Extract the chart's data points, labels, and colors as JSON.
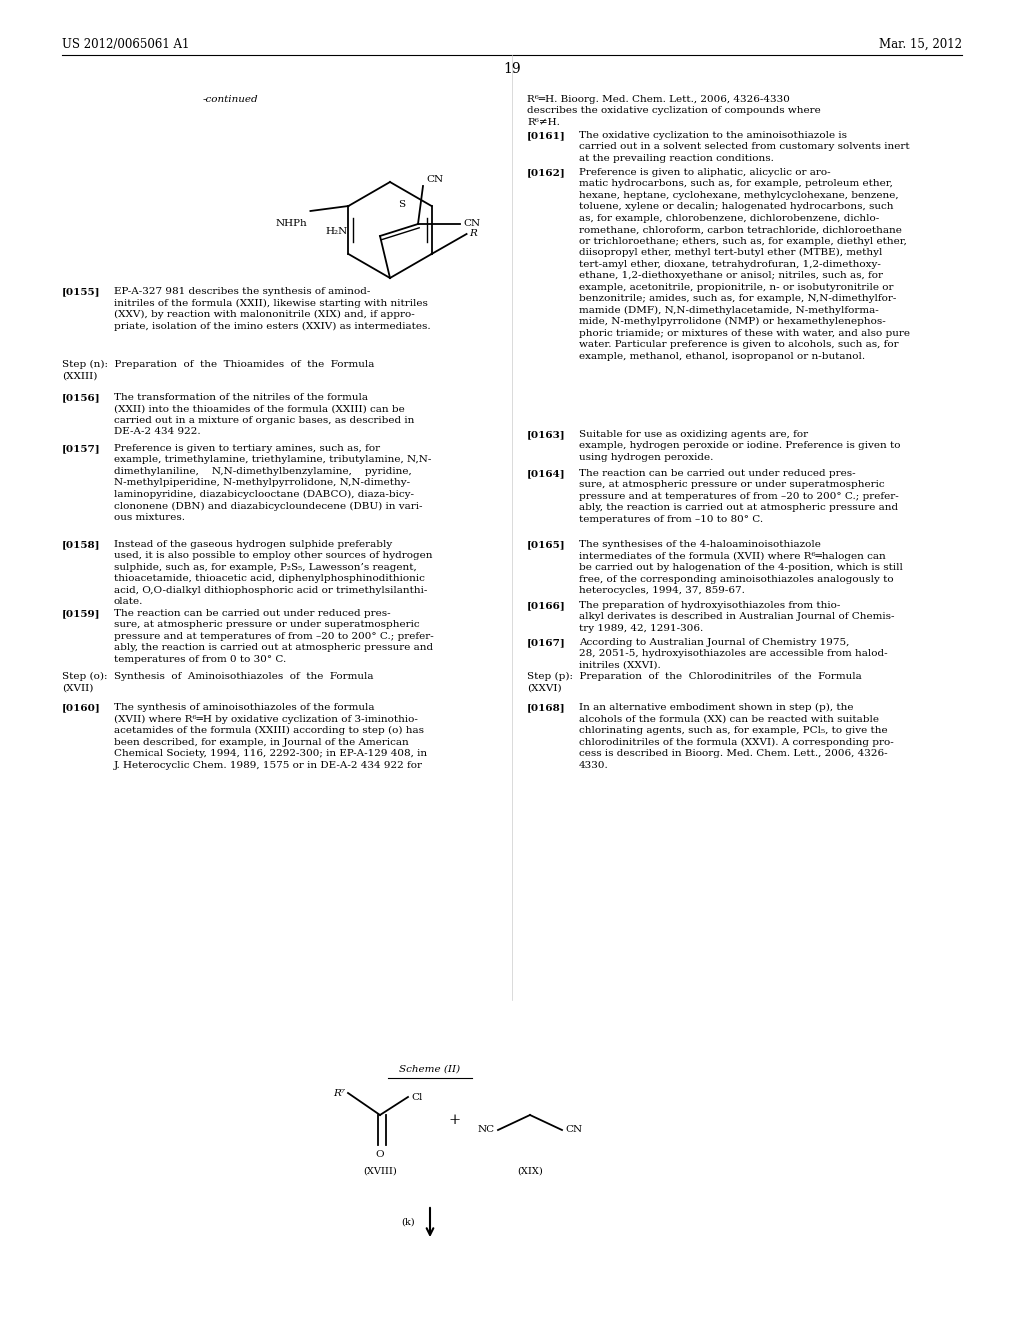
{
  "page_header_left": "US 2012/0065061 A1",
  "page_header_right": "Mar. 15, 2012",
  "page_number": "19",
  "bg_color": "#ffffff",
  "text_color": "#000000",
  "font_size_body": 7.5,
  "font_size_header": 8.5,
  "font_size_page_num": 10.0,
  "continued_label": "-continued"
}
